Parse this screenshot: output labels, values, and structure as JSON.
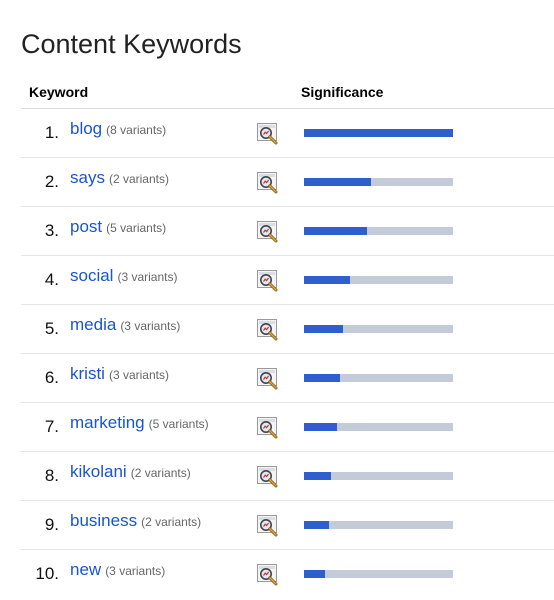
{
  "title": "Content Keywords",
  "headers": {
    "keyword": "Keyword",
    "significance": "Significance"
  },
  "colors": {
    "link": "#1a55cc",
    "bar_fill": "#2f5fcf",
    "bar_track": "#c4cbd8"
  },
  "icon": "magnifier-icon",
  "rows": [
    {
      "rank": "1.",
      "keyword": "blog",
      "variants": "(8 variants)",
      "significance": 1.0
    },
    {
      "rank": "2.",
      "keyword": "says",
      "variants": "(2 variants)",
      "significance": 0.45
    },
    {
      "rank": "3.",
      "keyword": "post",
      "variants": "(5 variants)",
      "significance": 0.42
    },
    {
      "rank": "4.",
      "keyword": "social",
      "variants": "(3 variants)",
      "significance": 0.31
    },
    {
      "rank": "5.",
      "keyword": "media",
      "variants": "(3 variants)",
      "significance": 0.26
    },
    {
      "rank": "6.",
      "keyword": "kristi",
      "variants": "(3 variants)",
      "significance": 0.24
    },
    {
      "rank": "7.",
      "keyword": "marketing",
      "variants": "(5 variants)",
      "significance": 0.22
    },
    {
      "rank": "8.",
      "keyword": "kikolani",
      "variants": "(2 variants)",
      "significance": 0.18
    },
    {
      "rank": "9.",
      "keyword": "business",
      "variants": "(2 variants)",
      "significance": 0.17
    },
    {
      "rank": "10.",
      "keyword": "new",
      "variants": "(3 variants)",
      "significance": 0.14
    }
  ]
}
